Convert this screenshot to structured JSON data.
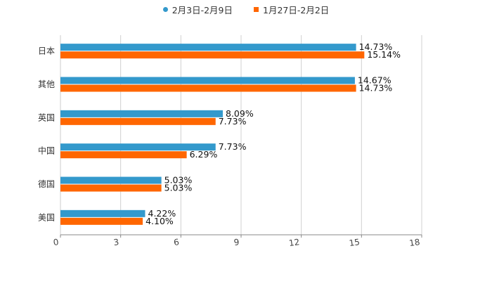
{
  "chart_data": {
    "type": "bar",
    "orientation": "horizontal",
    "title": "",
    "xlabel": "",
    "ylabel": "",
    "categories": [
      "日本",
      "其他",
      "英国",
      "中国",
      "德国",
      "美国"
    ],
    "series": [
      {
        "name": "2月3日-2月9日",
        "color": "#3399cc",
        "marker": "circle",
        "values": [
          14.73,
          14.67,
          8.09,
          7.73,
          5.03,
          4.22
        ],
        "labels": [
          "14.73%",
          "14.67%",
          "8.09%",
          "7.73%",
          "5.03%",
          "4.22%"
        ]
      },
      {
        "name": "1月27日-2月2日",
        "color": "#ff6600",
        "marker": "square",
        "values": [
          15.14,
          14.73,
          7.73,
          6.29,
          5.03,
          4.1
        ],
        "labels": [
          "15.14%",
          "14.73%",
          "7.73%",
          "6.29%",
          "5.03%",
          "4.10%"
        ]
      }
    ],
    "xlim": [
      0,
      18
    ],
    "xticks": [
      "0",
      "3",
      "6",
      "9",
      "12",
      "15",
      "18"
    ],
    "grid": true,
    "legend_position": "top-center"
  }
}
